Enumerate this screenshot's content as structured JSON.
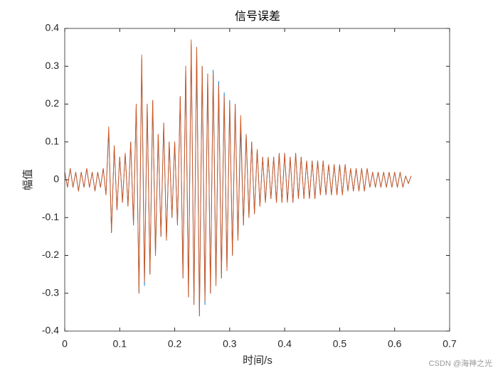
{
  "chart_data": {
    "type": "line",
    "title": "信号误差",
    "xlabel": "时间/s",
    "ylabel": "幅值",
    "watermark": "CSDN @海神之光",
    "xlim": [
      0,
      0.7
    ],
    "xticks": [
      0,
      0.1,
      0.2,
      0.3,
      0.4,
      0.5,
      0.6,
      0.7
    ],
    "ylim": [
      -0.4,
      0.4
    ],
    "yticks": [
      -0.4,
      -0.3,
      -0.2,
      -0.1,
      0,
      0.1,
      0.2,
      0.3,
      0.4
    ],
    "grid": false,
    "x": [
      0,
      0.005,
      0.01,
      0.015,
      0.02,
      0.025,
      0.03,
      0.035,
      0.04,
      0.045,
      0.05,
      0.055,
      0.06,
      0.065,
      0.07,
      0.075,
      0.08,
      0.085,
      0.09,
      0.095,
      0.1,
      0.105,
      0.11,
      0.115,
      0.12,
      0.125,
      0.13,
      0.135,
      0.14,
      0.145,
      0.15,
      0.155,
      0.16,
      0.165,
      0.17,
      0.175,
      0.18,
      0.185,
      0.19,
      0.195,
      0.2,
      0.205,
      0.21,
      0.215,
      0.22,
      0.225,
      0.23,
      0.235,
      0.24,
      0.245,
      0.25,
      0.255,
      0.26,
      0.265,
      0.27,
      0.275,
      0.28,
      0.285,
      0.29,
      0.295,
      0.3,
      0.305,
      0.31,
      0.315,
      0.32,
      0.325,
      0.33,
      0.335,
      0.34,
      0.345,
      0.35,
      0.355,
      0.36,
      0.365,
      0.37,
      0.375,
      0.38,
      0.385,
      0.39,
      0.395,
      0.4,
      0.405,
      0.41,
      0.415,
      0.42,
      0.425,
      0.43,
      0.435,
      0.44,
      0.445,
      0.45,
      0.455,
      0.46,
      0.465,
      0.47,
      0.475,
      0.48,
      0.485,
      0.49,
      0.495,
      0.5,
      0.505,
      0.51,
      0.515,
      0.52,
      0.525,
      0.53,
      0.535,
      0.54,
      0.545,
      0.55,
      0.555,
      0.56,
      0.565,
      0.57,
      0.575,
      0.58,
      0.585,
      0.59,
      0.595,
      0.6,
      0.605,
      0.61,
      0.615,
      0.62,
      0.625,
      0.63
    ],
    "series": [
      {
        "color": "#0072bd",
        "values": [
          0.02,
          -0.02,
          0.03,
          -0.02,
          0.02,
          -0.03,
          0.02,
          -0.02,
          0.03,
          -0.02,
          0.02,
          -0.03,
          0.02,
          -0.02,
          0.03,
          -0.04,
          0.13,
          -0.14,
          0.09,
          -0.08,
          0.06,
          -0.06,
          0.07,
          -0.07,
          0.1,
          -0.12,
          0.2,
          -0.3,
          0.32,
          -0.28,
          0.2,
          -0.25,
          0.21,
          -0.2,
          0.12,
          -0.15,
          0.15,
          -0.16,
          0.1,
          -0.1,
          0.1,
          -0.12,
          0.22,
          -0.26,
          0.3,
          -0.31,
          0.36,
          -0.33,
          0.35,
          -0.36,
          0.3,
          -0.33,
          0.28,
          -0.3,
          0.29,
          -0.28,
          0.26,
          -0.26,
          0.23,
          -0.24,
          0.21,
          -0.2,
          0.2,
          -0.16,
          0.14,
          -0.12,
          0.12,
          -0.1,
          0.1,
          -0.09,
          0.08,
          -0.07,
          0.06,
          -0.06,
          0.06,
          -0.05,
          0.06,
          -0.06,
          0.07,
          -0.06,
          0.07,
          -0.06,
          0.06,
          -0.06,
          0.07,
          -0.05,
          0.06,
          -0.05,
          0.05,
          -0.05,
          0.05,
          -0.05,
          0.05,
          -0.04,
          0.05,
          -0.04,
          0.04,
          -0.04,
          0.04,
          -0.04,
          0.04,
          -0.04,
          0.04,
          -0.03,
          0.03,
          -0.03,
          0.03,
          -0.03,
          0.03,
          -0.03,
          0.03,
          -0.02,
          0.02,
          -0.02,
          0.02,
          -0.02,
          0.02,
          -0.02,
          0.02,
          -0.02,
          0.02,
          -0.02,
          0.02,
          -0.02,
          0.01,
          -0.01,
          0.01
        ]
      },
      {
        "color": "#d95319",
        "values": [
          0.02,
          -0.02,
          0.03,
          -0.02,
          0.02,
          -0.03,
          0.02,
          -0.02,
          0.03,
          -0.02,
          0.02,
          -0.03,
          0.02,
          -0.02,
          0.03,
          -0.04,
          0.14,
          -0.14,
          0.09,
          -0.08,
          0.06,
          -0.06,
          0.07,
          -0.07,
          0.1,
          -0.12,
          0.2,
          -0.3,
          0.33,
          -0.27,
          0.2,
          -0.25,
          0.21,
          -0.2,
          0.12,
          -0.15,
          0.15,
          -0.16,
          0.1,
          -0.1,
          0.1,
          -0.12,
          0.22,
          -0.26,
          0.3,
          -0.31,
          0.37,
          -0.33,
          0.35,
          -0.36,
          0.3,
          -0.32,
          0.28,
          -0.3,
          0.28,
          -0.28,
          0.25,
          -0.26,
          0.22,
          -0.24,
          0.2,
          -0.2,
          0.2,
          -0.16,
          0.17,
          -0.12,
          0.12,
          -0.1,
          0.1,
          -0.09,
          0.08,
          -0.07,
          0.06,
          -0.06,
          0.06,
          -0.05,
          0.06,
          -0.06,
          0.07,
          -0.06,
          0.07,
          -0.06,
          0.06,
          -0.06,
          0.07,
          -0.05,
          0.06,
          -0.05,
          0.05,
          -0.05,
          0.05,
          -0.05,
          0.05,
          -0.04,
          0.05,
          -0.04,
          0.04,
          -0.04,
          0.04,
          -0.04,
          0.04,
          -0.04,
          0.04,
          -0.03,
          0.03,
          -0.03,
          0.03,
          -0.03,
          0.03,
          -0.03,
          0.03,
          -0.02,
          0.02,
          -0.02,
          0.02,
          -0.02,
          0.02,
          -0.02,
          0.02,
          -0.02,
          0.02,
          -0.02,
          0.02,
          -0.02,
          0.01,
          -0.01,
          0.01
        ]
      }
    ]
  }
}
